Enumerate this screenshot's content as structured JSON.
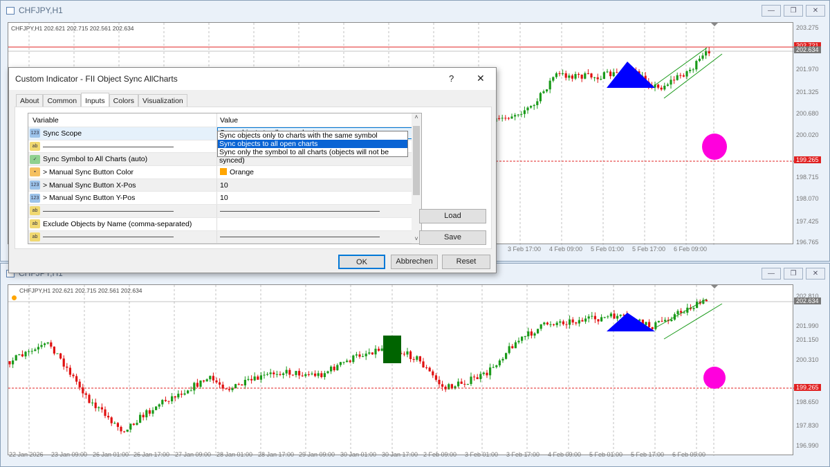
{
  "top_window": {
    "title": "CHFJPY,H1",
    "info": "CHFJPY,H1  202.621 202.715 202.561 202.634",
    "price_ticks": [
      "203.275",
      "201.970",
      "201.325",
      "200.680",
      "200.020",
      "198.715",
      "198.070",
      "197.425",
      "196.765"
    ],
    "price_badges": {
      "red_line": "202.721",
      "current": "202.634",
      "level": "199.265"
    },
    "time_ticks": [
      "3 Feb 17:00",
      "4 Feb 09:00",
      "5 Feb 01:00",
      "5 Feb 17:00",
      "6 Feb 09:00"
    ]
  },
  "bottom_window": {
    "title": "CHFJPY,H1",
    "info": "CHFJPY,H1  202.621 202.715 202.561 202.634",
    "price_ticks": [
      "202.810",
      "201.990",
      "201.150",
      "200.310",
      "198.650",
      "197.830",
      "196.990"
    ],
    "price_badges": {
      "current": "202.634",
      "level": "199.265"
    },
    "time_ticks": [
      "22 Jan 2026",
      "23 Jan 09:00",
      "26 Jan 01:00",
      "26 Jan 17:00",
      "27 Jan 09:00",
      "28 Jan 01:00",
      "28 Jan 17:00",
      "29 Jan 09:00",
      "30 Jan 01:00",
      "30 Jan 17:00",
      "2 Feb 09:00",
      "3 Feb 01:00",
      "3 Feb 17:00",
      "4 Feb 09:00",
      "5 Feb 01:00",
      "5 Feb 17:00",
      "6 Feb 09:00"
    ]
  },
  "window_buttons": {
    "minimize": "—",
    "restore": "❐",
    "close": "✕"
  },
  "colors": {
    "bull": "#1a9a1a",
    "bear": "#e01010",
    "triangle": "#0000ff",
    "circle": "#ff00dd",
    "rectangle": "#006400",
    "level": "#e02020"
  },
  "dialog": {
    "title": "Custom Indicator - FII Object Sync AllCharts",
    "help": "?",
    "close": "✕",
    "tabs": [
      "About",
      "Common",
      "Inputs",
      "Colors",
      "Visualization"
    ],
    "active_tab": "Inputs",
    "columns": [
      "Variable",
      "Value"
    ],
    "rows": [
      {
        "icon": "enum",
        "variable": "Sync Scope",
        "value": "Sync objects to all open charts"
      },
      {
        "icon": "string",
        "variable": "——————————————————",
        "value": ""
      },
      {
        "icon": "bool",
        "variable": "Sync Symbol to All Charts (auto)",
        "value": ""
      },
      {
        "icon": "color",
        "variable": "> Manual Sync Button Color",
        "value": "Orange"
      },
      {
        "icon": "int",
        "variable": "> Manual Sync Button X-Pos",
        "value": "10"
      },
      {
        "icon": "int",
        "variable": "> Manual Sync Button Y-Pos",
        "value": "10"
      },
      {
        "icon": "string",
        "variable": "——————————————————",
        "value": "——————————————————————"
      },
      {
        "icon": "string",
        "variable": "Exclude Objects by Name (comma-separated)",
        "value": ""
      },
      {
        "icon": "string",
        "variable": "——————————————————",
        "value": "——————————————————————"
      }
    ],
    "dropdown_options": [
      "Sync objects only to charts with the same symbol",
      "Sync objects to all open charts",
      "Sync only the symbol to all charts (objects will not be synced)"
    ],
    "dropdown_selected": 1,
    "buttons": {
      "load": "Load",
      "save": "Save",
      "ok": "OK",
      "cancel": "Abbrechen",
      "reset": "Reset"
    }
  }
}
